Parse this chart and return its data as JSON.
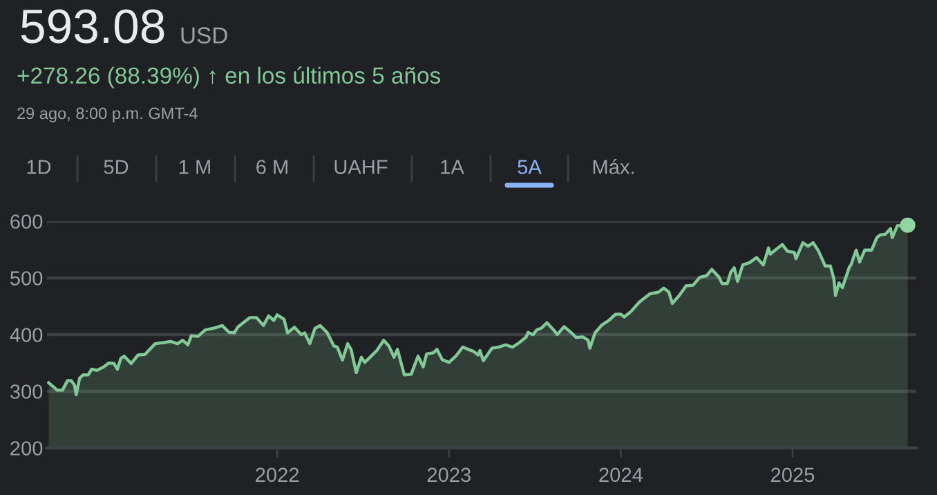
{
  "chart_data": {
    "type": "area",
    "title": "593.08",
    "subtitle": "+278.26 (88.39%) ↑ en los últimos 5 años",
    "annotations": [
      "USD",
      "29 ago, 8:00 p.m. GMT-4",
      "1D",
      "5D",
      "1 M",
      "6 M",
      "UAHF",
      "1A",
      "5A",
      "Máx."
    ],
    "series": [
      {
        "color": "#81c995",
        "x": [
          2020.67,
          2020.72,
          2020.75,
          2020.78,
          2020.8,
          2020.82,
          2020.83,
          2020.85,
          2020.87,
          2020.9,
          2020.92,
          2020.95,
          2020.99,
          2021.02,
          2021.05,
          2021.07,
          2021.09,
          2021.11,
          2021.15,
          2021.19,
          2021.23,
          2021.29,
          2021.34,
          2021.38,
          2021.42,
          2021.45,
          2021.48,
          2021.5,
          2021.54,
          2021.58,
          2021.64,
          2021.68,
          2021.72,
          2021.75,
          2021.77,
          2021.84,
          2021.88,
          2021.92,
          2021.95,
          2021.98,
          2022.0,
          2022.04,
          2022.06,
          2022.1,
          2022.14,
          2022.16,
          2022.19,
          2022.22,
          2022.25,
          2022.29,
          2022.33,
          2022.35,
          2022.38,
          2022.41,
          2022.43,
          2022.46,
          2022.49,
          2022.51,
          2022.54,
          2022.58,
          2022.62,
          2022.65,
          2022.68,
          2022.7,
          2022.74,
          2022.78,
          2022.82,
          2022.85,
          2022.87,
          2022.91,
          2022.93,
          2022.96,
          2023.0,
          2023.04,
          2023.08,
          2023.12,
          2023.14,
          2023.17,
          2023.18,
          2023.2,
          2023.25,
          2023.29,
          2023.33,
          2023.37,
          2023.41,
          2023.45,
          2023.46,
          2023.49,
          2023.51,
          2023.54,
          2023.57,
          2023.61,
          2023.63,
          2023.67,
          2023.71,
          2023.74,
          2023.78,
          2023.81,
          2023.82,
          2023.85,
          2023.89,
          2023.93,
          2023.97,
          2024.0,
          2024.02,
          2024.06,
          2024.11,
          2024.17,
          2024.22,
          2024.25,
          2024.28,
          2024.3,
          2024.34,
          2024.38,
          2024.42,
          2024.46,
          2024.5,
          2024.53,
          2024.57,
          2024.59,
          2024.62,
          2024.64,
          2024.66,
          2024.68,
          2024.71,
          2024.75,
          2024.79,
          2024.83,
          2024.86,
          2024.87,
          2024.94,
          2024.97,
          2025.01,
          2025.02,
          2025.06,
          2025.09,
          2025.12,
          2025.15,
          2025.19,
          2025.22,
          2025.24,
          2025.25,
          2025.27,
          2025.29,
          2025.33,
          2025.34,
          2025.37,
          2025.39,
          2025.42,
          2025.46,
          2025.49,
          2025.51,
          2025.54,
          2025.57,
          2025.58,
          2025.61,
          2025.67
        ],
        "values": [
          315,
          302,
          302,
          319,
          319,
          311,
          294,
          323,
          329,
          329,
          339,
          337,
          343,
          350,
          349,
          339,
          358,
          362,
          349,
          364,
          365,
          384,
          386,
          388,
          384,
          390,
          382,
          398,
          397,
          408,
          412,
          416,
          404,
          403,
          413,
          430,
          430,
          416,
          433,
          425,
          435,
          427,
          403,
          413,
          400,
          403,
          384,
          411,
          416,
          404,
          380,
          378,
          355,
          384,
          374,
          333,
          360,
          351,
          360,
          372,
          390,
          380,
          360,
          374,
          329,
          330,
          362,
          343,
          366,
          368,
          374,
          356,
          351,
          362,
          378,
          373,
          371,
          364,
          372,
          354,
          376,
          378,
          382,
          378,
          386,
          396,
          404,
          400,
          408,
          412,
          421,
          408,
          400,
          414,
          404,
          395,
          396,
          390,
          376,
          403,
          417,
          425,
          436,
          436,
          431,
          441,
          458,
          472,
          475,
          482,
          475,
          455,
          469,
          486,
          487,
          501,
          504,
          515,
          502,
          490,
          490,
          510,
          518,
          494,
          523,
          527,
          536,
          523,
          553,
          542,
          559,
          547,
          545,
          534,
          562,
          556,
          562,
          548,
          521,
          521,
          499,
          469,
          491,
          483,
          519,
          523,
          549,
          528,
          549,
          549,
          571,
          576,
          577,
          587,
          571,
          592,
          593
        ]
      },
      {
        "type": "scatter",
        "color": "#8fd6a2",
        "marker": "circle",
        "x": [
          2025.67
        ],
        "values": [
          593
        ]
      }
    ],
    "xlim": [
      2020.66,
      2025.72
    ],
    "xticks": [
      2022,
      2023,
      2024,
      2025
    ],
    "ylim": [
      200,
      600
    ],
    "yticks": [
      200,
      300,
      400,
      500,
      600
    ],
    "grid": "y"
  }
}
